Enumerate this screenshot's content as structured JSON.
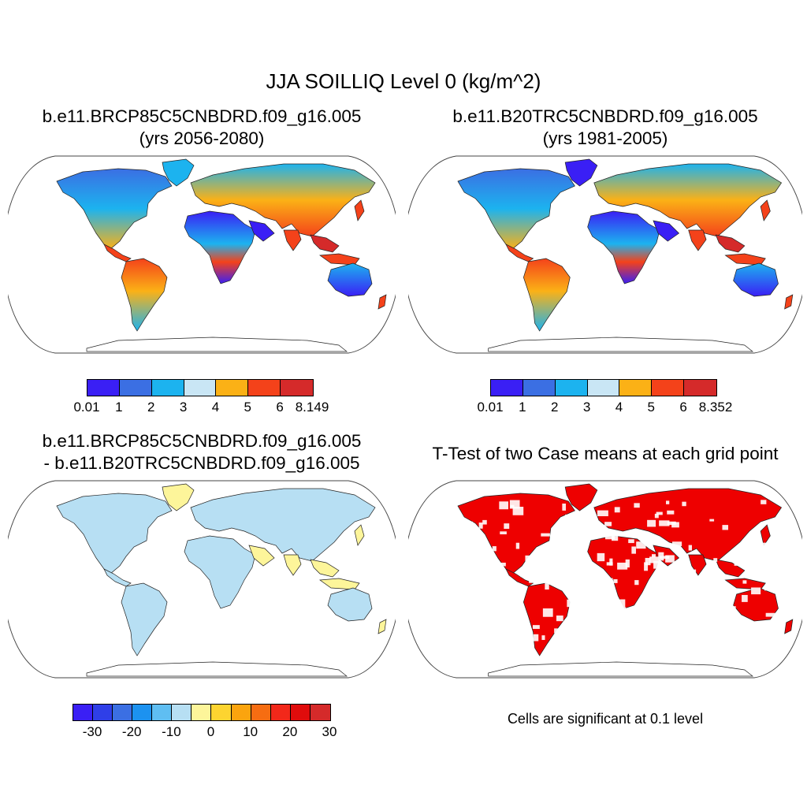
{
  "title": "JJA SOILLIQ Level 0 (kg/m^2)",
  "panels": {
    "top_left": {
      "title_line1": "b.e11.BRCP85C5CNBDRD.f09_g16.005",
      "title_line2": "(yrs 2056-2080)",
      "colorbar": {
        "colors": [
          "#3a1ff5",
          "#3b6fe3",
          "#1cb3ef",
          "#c9e6f5",
          "#fbb116",
          "#f4421a",
          "#d52a2a"
        ],
        "labels": [
          "0.01",
          "1",
          "2",
          "3",
          "4",
          "5",
          "6",
          "8.149"
        ]
      }
    },
    "top_right": {
      "title_line1": "b.e11.B20TRC5CNBDRD.f09_g16.005",
      "title_line2": "(yrs 1981-2005)",
      "colorbar": {
        "colors": [
          "#3a1ff5",
          "#3b6fe3",
          "#1cb3ef",
          "#c9e6f5",
          "#fbb116",
          "#f4421a",
          "#d52a2a"
        ],
        "labels": [
          "0.01",
          "1",
          "2",
          "3",
          "4",
          "5",
          "6",
          "8.352"
        ]
      }
    },
    "bottom_left": {
      "title_line1": "b.e11.BRCP85C5CNBDRD.f09_g16.005",
      "title_line2": "- b.e11.B20TRC5CNBDRD.f09_g16.005",
      "colorbar": {
        "colors": [
          "#3a1ff5",
          "#2f3fe8",
          "#3b6fe3",
          "#1c92f0",
          "#5fbef2",
          "#b7dff3",
          "#fdf59a",
          "#fdd430",
          "#fba40e",
          "#f66d12",
          "#f2281a",
          "#e00c0c",
          "#d52a2a"
        ],
        "labels": [
          "-30",
          "-20",
          "-10",
          "0",
          "10",
          "20",
          "30"
        ]
      }
    },
    "bottom_right": {
      "title": "T-Test of two Case means at each grid point",
      "note": "Cells are significant at 0.1 level",
      "sig_color": "#ee0000"
    }
  }
}
